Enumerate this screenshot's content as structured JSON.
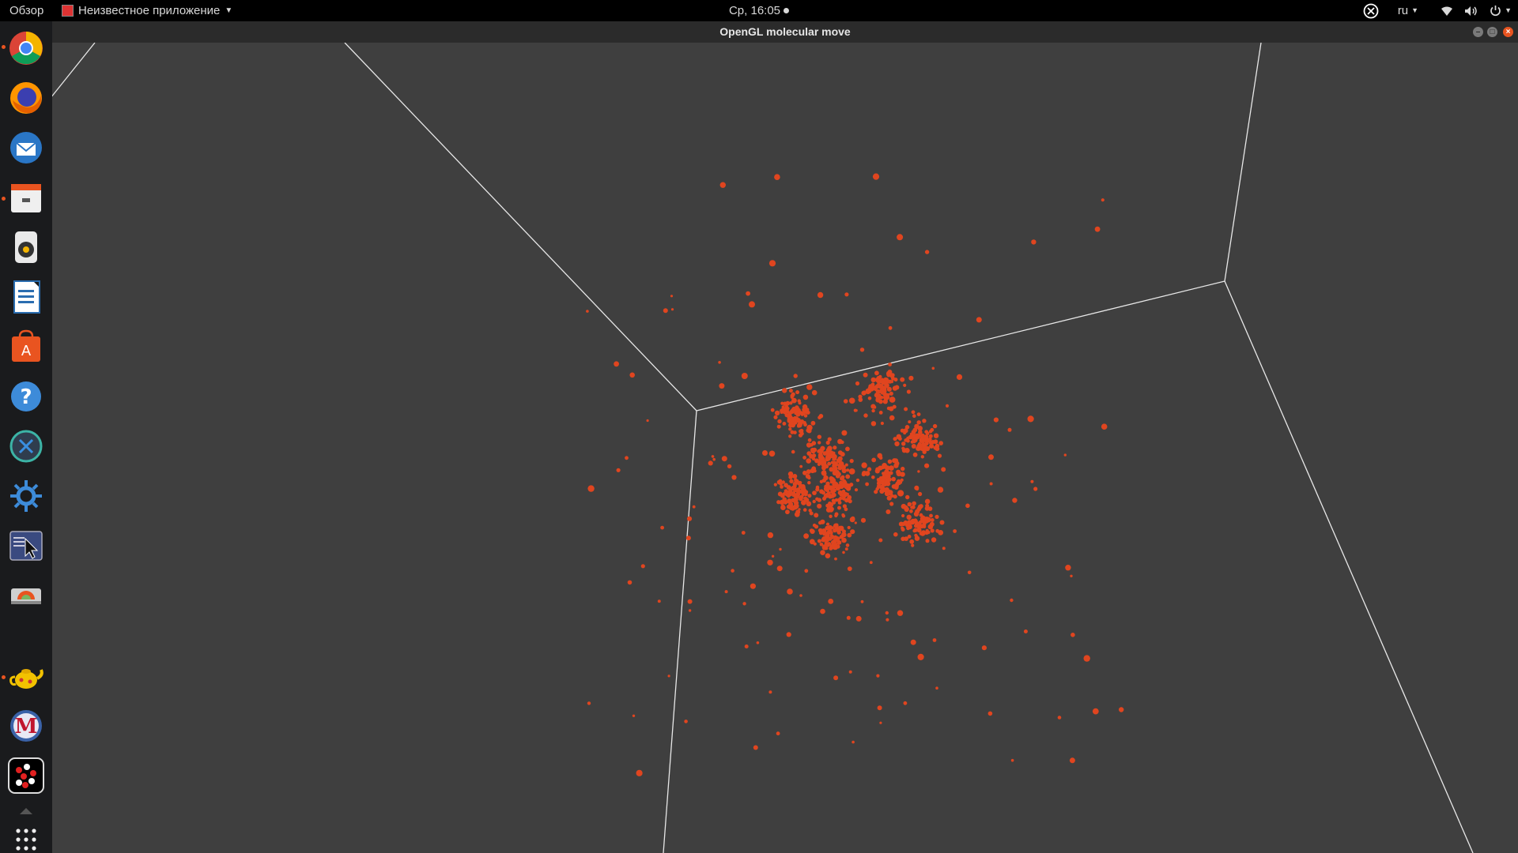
{
  "topbar": {
    "activities": "Обзор",
    "app_menu": "Неизвестное приложение",
    "clock": "Ср, 16:05",
    "language": "ru"
  },
  "window": {
    "title": "OpenGL molecular move"
  },
  "dock": {
    "items": [
      {
        "name": "chrome"
      },
      {
        "name": "firefox"
      },
      {
        "name": "thunderbird"
      },
      {
        "name": "files"
      },
      {
        "name": "rhythmbox"
      },
      {
        "name": "libreoffice-writer"
      },
      {
        "name": "ubuntu-software"
      },
      {
        "name": "help"
      },
      {
        "name": "remote-app"
      },
      {
        "name": "settings-app"
      },
      {
        "name": "screen-tool"
      },
      {
        "name": "disk-app"
      },
      {
        "name": "teapot-app"
      },
      {
        "name": "maxima-app"
      },
      {
        "name": "molecular-app"
      }
    ]
  },
  "colors": {
    "particle": "#e0451f",
    "wireframe": "#e8e8e8",
    "background": "#3f3f3f",
    "accent": "#e95420"
  }
}
